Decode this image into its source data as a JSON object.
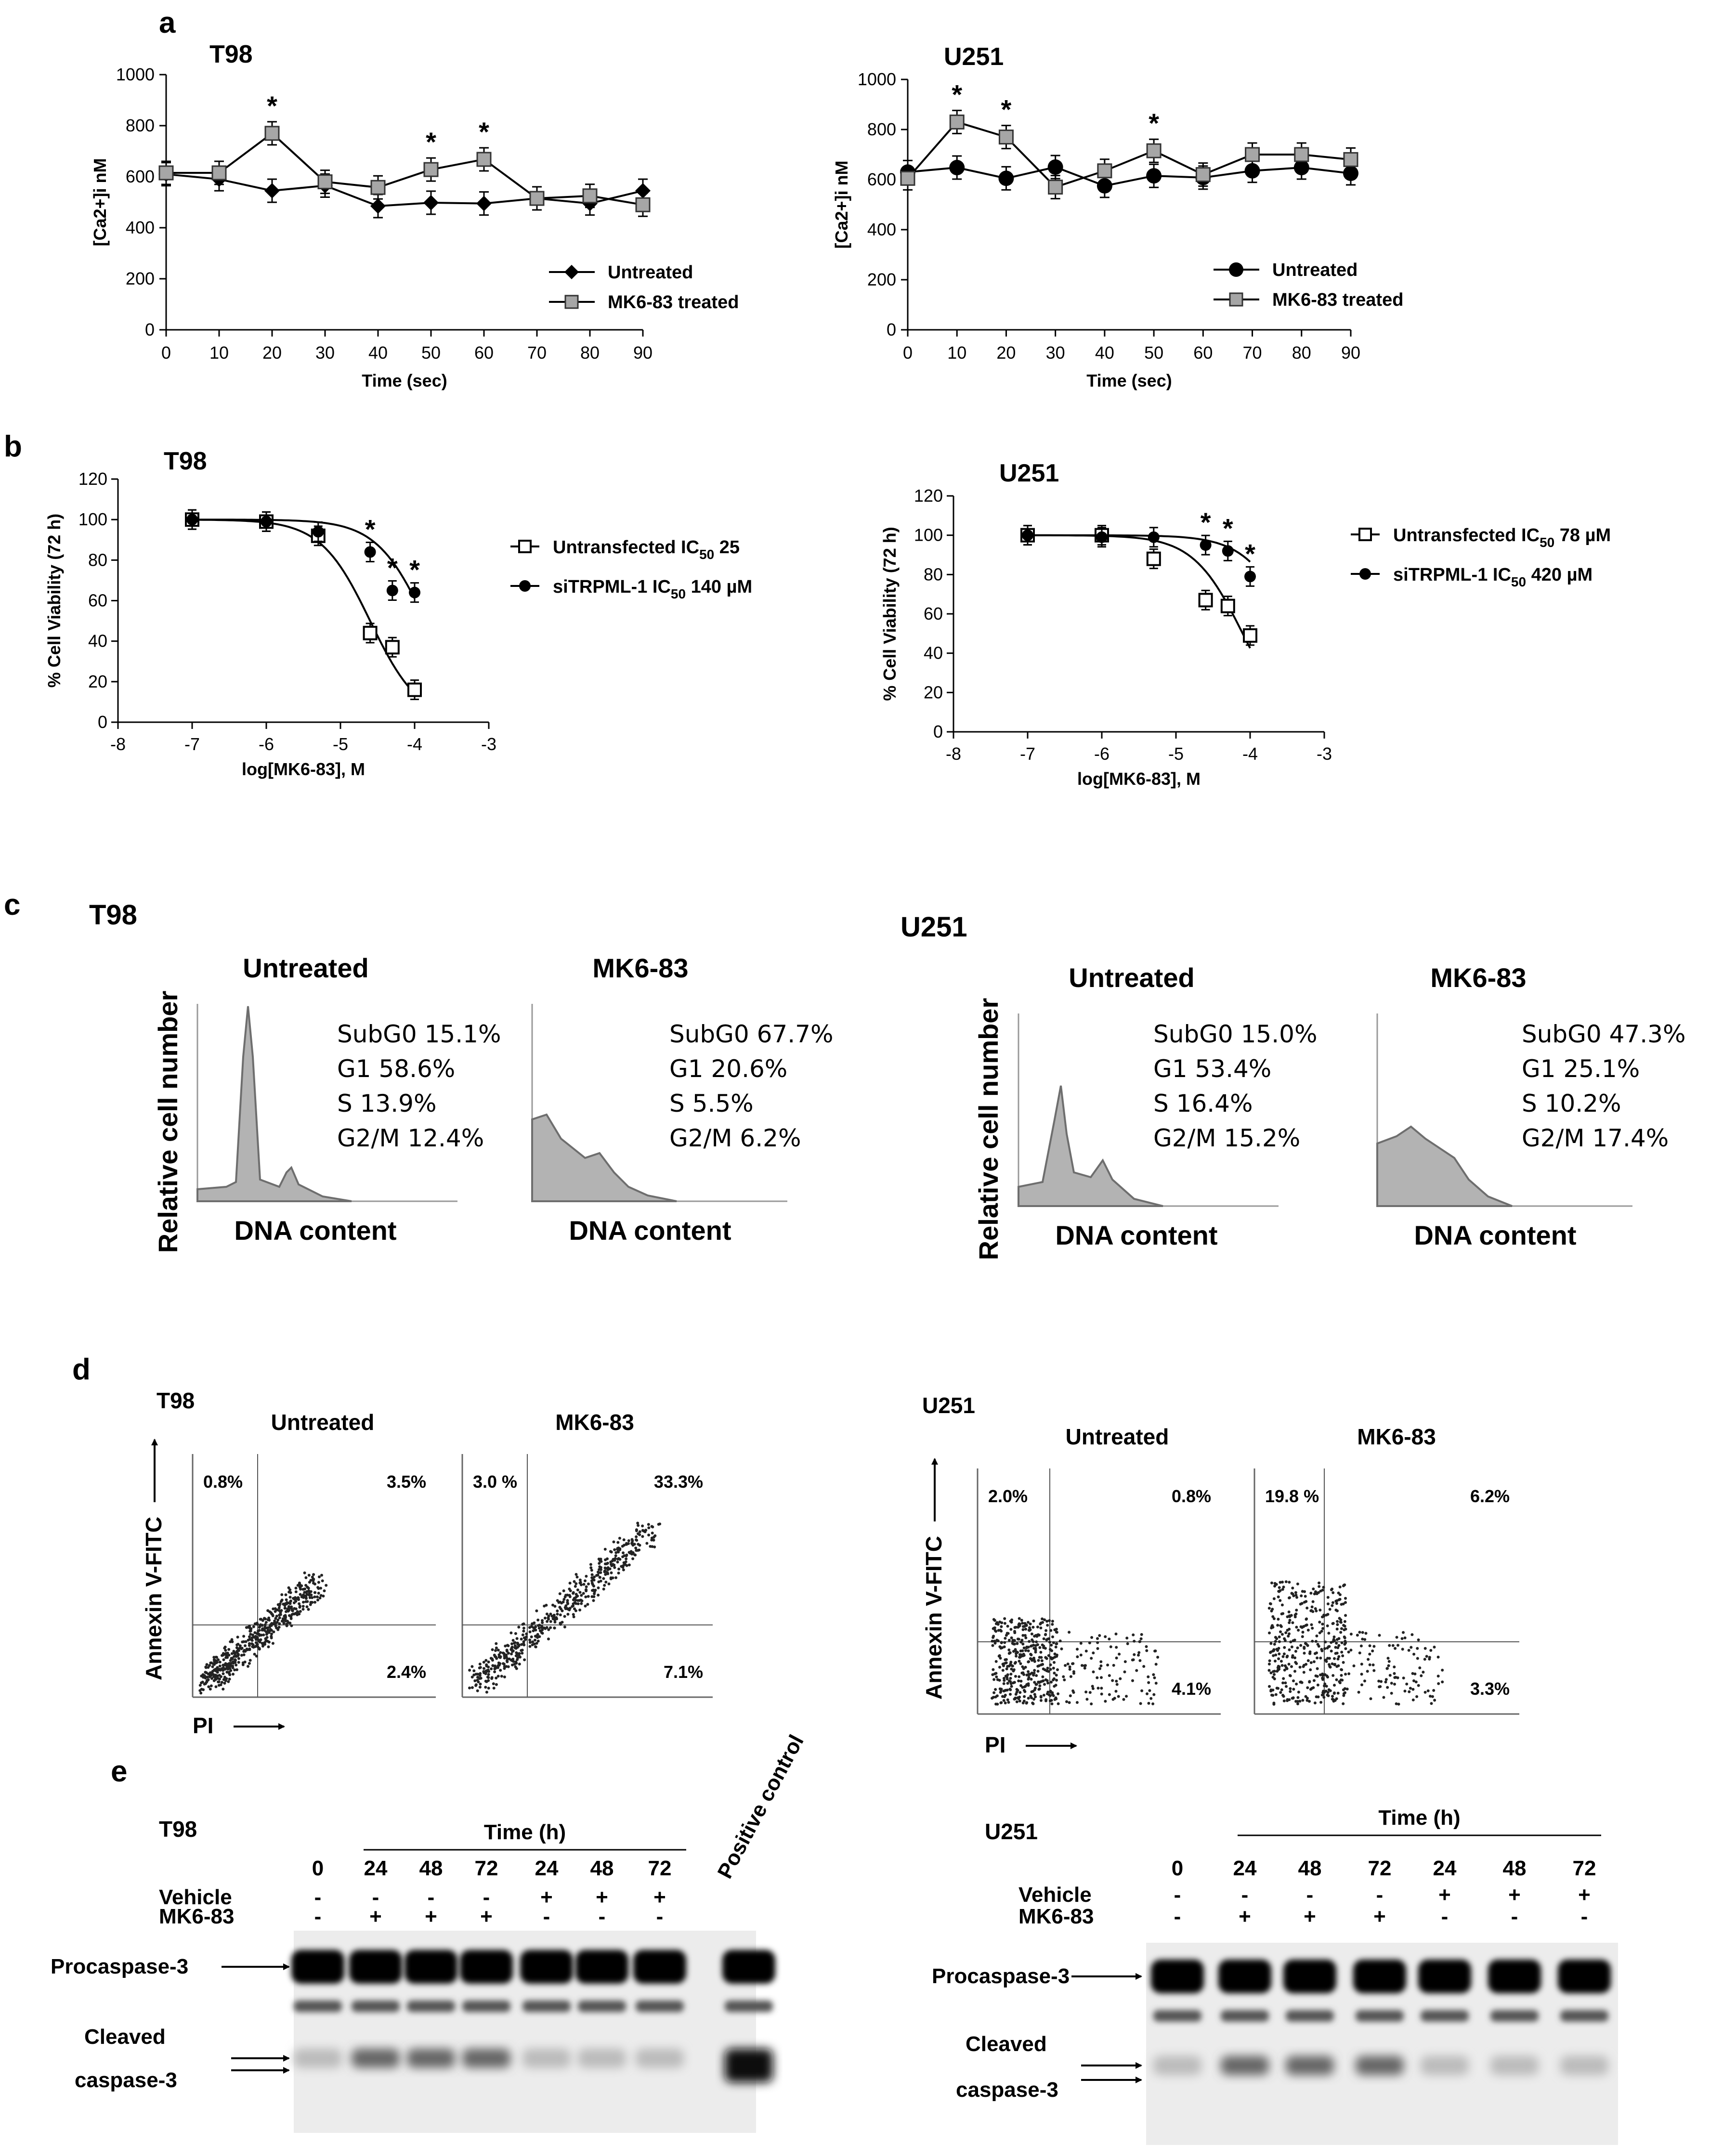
{
  "panel_a": {
    "letter": "a",
    "charts": [
      {
        "cell": "T98",
        "type": "line",
        "xlabel": "Time (sec)",
        "ylabel": "[Ca2+]i nM",
        "ylim": [
          0,
          1000
        ],
        "yticks": [
          0,
          200,
          400,
          600,
          800,
          1000
        ],
        "xticks": [
          0,
          10,
          20,
          30,
          40,
          50,
          60,
          70,
          80,
          90
        ],
        "x": [
          0,
          10,
          20,
          30,
          40,
          50,
          60,
          70,
          80,
          90
        ],
        "series": [
          {
            "name": "Untreated",
            "marker": "diamond",
            "values": [
              610,
              590,
              545,
              565,
              485,
              498,
              495,
              515,
              495,
              545
            ]
          },
          {
            "name": "MK6-83 treated",
            "marker": "square",
            "values": [
              615,
              615,
              770,
              580,
              558,
              628,
              668,
              515,
              525,
              490
            ]
          }
        ],
        "significant_x": [
          20,
          50,
          60
        ]
      },
      {
        "cell": "U251",
        "type": "line",
        "xlabel": "Time (sec)",
        "ylabel": "[Ca2+]i nM",
        "ylim": [
          0,
          1000
        ],
        "yticks": [
          0,
          200,
          400,
          600,
          800,
          1000
        ],
        "xticks": [
          0,
          10,
          20,
          30,
          40,
          50,
          60,
          70,
          80,
          90
        ],
        "x": [
          0,
          10,
          20,
          30,
          40,
          50,
          60,
          70,
          80,
          90
        ],
        "series": [
          {
            "name": "Untreated",
            "marker": "circle",
            "values": [
              630,
              648,
              605,
              650,
              575,
              615,
              608,
              635,
              648,
              625
            ]
          },
          {
            "name": "MK6-83 treated",
            "marker": "square",
            "values": [
              605,
              830,
              770,
              570,
              635,
              715,
              620,
              700,
              700,
              680
            ]
          }
        ],
        "significant_x": [
          10,
          20,
          50
        ]
      }
    ]
  },
  "panel_b": {
    "letter": "b",
    "charts": [
      {
        "cell": "T98",
        "type": "scatter",
        "xlabel": "log[MK6-83], M",
        "ylabel": "% Cell Viability (72 h)",
        "xlim": [
          -8,
          -3
        ],
        "ylim": [
          0,
          120
        ],
        "yticks": [
          0,
          20,
          40,
          60,
          80,
          100,
          120
        ],
        "xticks": [
          -8,
          -7,
          -6,
          -5,
          -4,
          -3
        ],
        "series": [
          {
            "name": "Untransfected",
            "ic50_label": "IC50 25",
            "marker": "open-square",
            "x": [
              -7,
              -6,
              -5.3,
              -4.6,
              -4.3,
              -4
            ],
            "values": [
              100,
              99,
              92,
              44,
              37,
              16
            ],
            "logIC50": -4.6
          },
          {
            "name": "siTRPML-1",
            "ic50_label": "IC50 140 µM",
            "marker": "filled-circle",
            "x": [
              -7,
              -6,
              -5.3,
              -4.6,
              -4.3,
              -4
            ],
            "values": [
              100,
              99,
              94,
              84,
              65,
              64
            ],
            "logIC50": -3.85
          }
        ],
        "significant_x": [
          -4.6,
          -4.3,
          -4
        ],
        "legend": [
          {
            "pre": "Untransfected IC",
            "sub": "50",
            "post": " 25"
          },
          {
            "pre": "siTRPML-1 IC",
            "sub": "50",
            "post": " 140 µM"
          }
        ]
      },
      {
        "cell": "U251",
        "type": "scatter",
        "xlabel": "log[MK6-83], M",
        "ylabel": "% Cell Viability (72 h)",
        "xlim": [
          -8,
          -3
        ],
        "ylim": [
          0,
          120
        ],
        "yticks": [
          0,
          20,
          40,
          60,
          80,
          100,
          120
        ],
        "xticks": [
          -8,
          -7,
          -6,
          -5,
          -4,
          -3
        ],
        "series": [
          {
            "name": "Untransfected",
            "ic50_label": "IC50 78 µM",
            "marker": "open-square",
            "x": [
              -7,
              -6,
              -5.3,
              -4.6,
              -4.3,
              -4
            ],
            "values": [
              100,
              100,
              88,
              67,
              64,
              49
            ],
            "logIC50": -4.1
          },
          {
            "name": "siTRPML-1",
            "ic50_label": "IC50 420 µM",
            "marker": "filled-circle",
            "x": [
              -7,
              -6,
              -5.3,
              -4.6,
              -4.3,
              -4
            ],
            "values": [
              100,
              99,
              99,
              95,
              92,
              79
            ],
            "logIC50": -3.38
          }
        ],
        "significant_x": [
          -4.6,
          -4.3,
          -4
        ],
        "legend": [
          {
            "pre": "Untransfected IC",
            "sub": "50",
            "post": " 78 µM"
          },
          {
            "pre": "siTRPML-1 IC",
            "sub": "50",
            "post": " 420 µM"
          }
        ]
      }
    ]
  },
  "panel_c": {
    "letter": "c",
    "ylabel": "Relative cell number",
    "xlabel": "DNA content",
    "cells": [
      {
        "cell": "T98",
        "plots": [
          {
            "title": "Untreated",
            "stats": [
              "SubG0 15.1%",
              "G1 58.6%",
              "S 13.9%",
              "G2/M 12.4%"
            ]
          },
          {
            "title": "MK6-83",
            "stats": [
              "SubG0 67.7%",
              "G1 20.6%",
              "S 5.5%",
              "G2/M 6.2%"
            ]
          }
        ]
      },
      {
        "cell": "U251",
        "plots": [
          {
            "title": "Untreated",
            "stats": [
              "SubG0 15.0%",
              "G1 53.4%",
              "S 16.4%",
              "G2/M 15.2%"
            ]
          },
          {
            "title": "MK6-83",
            "stats": [
              "SubG0 47.3%",
              "G1 25.1%",
              "S 10.2%",
              "G2/M 17.4%"
            ]
          }
        ]
      }
    ]
  },
  "panel_d": {
    "letter": "d",
    "ylabel": "Annexin V-FITC",
    "xlabel": "PI",
    "cells": [
      {
        "cell": "T98",
        "plots": [
          {
            "title": "Untreated",
            "quadrants": {
              "ul": "0.8%",
              "ur": "3.5%",
              "lr": "2.4%"
            }
          },
          {
            "title": "MK6-83",
            "quadrants": {
              "ul": "3.0 %",
              "ur": "33.3%",
              "lr": "7.1%"
            }
          }
        ]
      },
      {
        "cell": "U251",
        "plots": [
          {
            "title": "Untreated",
            "quadrants": {
              "ul": "2.0%",
              "ur": "0.8%",
              "lr": "4.1%"
            }
          },
          {
            "title": "MK6-83",
            "quadrants": {
              "ul": "19.8 %",
              "ur": "6.2%",
              "lr": "3.3%"
            }
          }
        ]
      }
    ]
  },
  "panel_e": {
    "letter": "e",
    "time_label": "Time (h)",
    "lanes": [
      "0",
      "24",
      "48",
      "72",
      "24",
      "48",
      "72"
    ],
    "vehicle_label": "Vehicle",
    "mk_label": "MK6-83",
    "vehicle": [
      "-",
      "-",
      "-",
      "-",
      "+",
      "+",
      "+"
    ],
    "mk": [
      "-",
      "+",
      "+",
      "+",
      "-",
      "-",
      "-"
    ],
    "procaspase_label": "Procaspase-3",
    "cleaved_label_1": "Cleaved",
    "cleaved_label_2": "caspase-3",
    "positive_control": "Positive control",
    "cells": [
      "T98",
      "U251"
    ]
  }
}
